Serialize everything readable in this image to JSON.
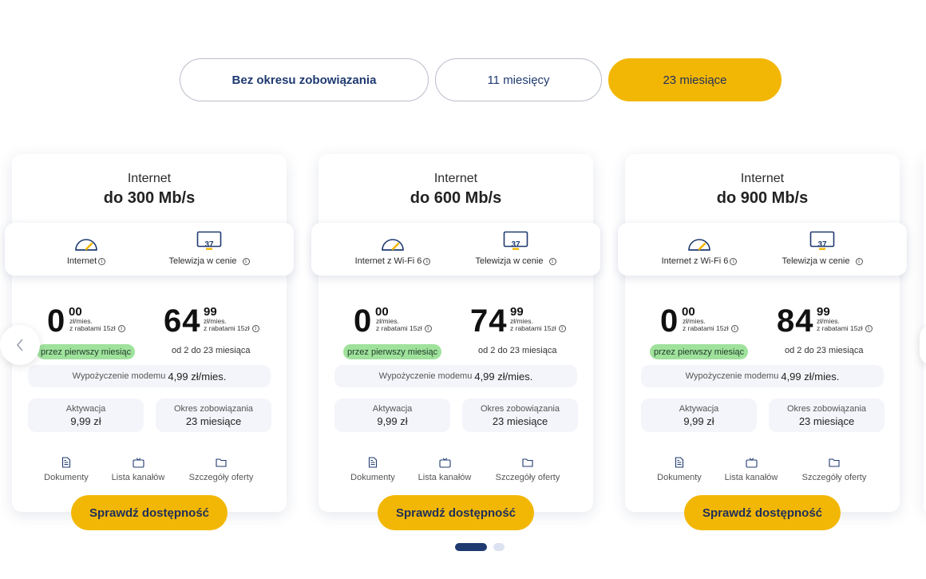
{
  "tabs": [
    {
      "label": "Bez okresu zobowiązania",
      "active": false
    },
    {
      "label": "11 miesięcy",
      "active": false
    },
    {
      "label": "23 miesiące",
      "active": true
    }
  ],
  "cards": [
    {
      "subtitle": "Internet",
      "title": "do 300 Mb/s",
      "features": [
        {
          "label": "Internet",
          "icon": "speedometer-icon"
        },
        {
          "label": "Telewizja w cenie",
          "icon": "tv-icon",
          "badge": "37"
        }
      ],
      "price1": {
        "int": "0",
        "dec": "00",
        "unit": "zł/mies.",
        "discount": "z rabatami 15zł",
        "note": "przez pierwszy miesiąc"
      },
      "price2": {
        "int": "64",
        "dec": "99",
        "unit": "zł/mies.",
        "discount": "z rabatami 15zł",
        "note": "od 2 do 23 miesiąca"
      },
      "modem_label": "Wypożyczenie modemu",
      "modem_value": "4,99 zł/mies.",
      "activation_label": "Aktywacja",
      "activation_value": "9,99 zł",
      "commitment_label": "Okres zobowiązania",
      "commitment_value": "23 miesiące",
      "links": [
        "Dokumenty",
        "Lista kanałów",
        "Szczegóły oferty"
      ],
      "cta": "Sprawdź dostępność"
    },
    {
      "subtitle": "Internet",
      "title": "do 600 Mb/s",
      "features": [
        {
          "label": "Internet z Wi-Fi 6",
          "icon": "speedometer-icon"
        },
        {
          "label": "Telewizja w cenie",
          "icon": "tv-icon",
          "badge": "37"
        }
      ],
      "price1": {
        "int": "0",
        "dec": "00",
        "unit": "zł/mies.",
        "discount": "z rabatami 15zł",
        "note": "przez pierwszy miesiąc"
      },
      "price2": {
        "int": "74",
        "dec": "99",
        "unit": "zł/mies.",
        "discount": "z rabatami 15zł",
        "note": "od 2 do 23 miesiąca"
      },
      "modem_label": "Wypożyczenie modemu",
      "modem_value": "4,99 zł/mies.",
      "activation_label": "Aktywacja",
      "activation_value": "9,99 zł",
      "commitment_label": "Okres zobowiązania",
      "commitment_value": "23 miesiące",
      "links": [
        "Dokumenty",
        "Lista kanałów",
        "Szczegóły oferty"
      ],
      "cta": "Sprawdź dostępność"
    },
    {
      "subtitle": "Internet",
      "title": "do 900 Mb/s",
      "features": [
        {
          "label": "Internet z Wi-Fi 6",
          "icon": "speedometer-icon"
        },
        {
          "label": "Telewizja w cenie",
          "icon": "tv-icon",
          "badge": "37"
        }
      ],
      "price1": {
        "int": "0",
        "dec": "00",
        "unit": "zł/mies.",
        "discount": "z rabatami 15zł",
        "note": "przez pierwszy miesiąc"
      },
      "price2": {
        "int": "84",
        "dec": "99",
        "unit": "zł/mies.",
        "discount": "z rabatami 15zł",
        "note": "od 2 do 23 miesiąca"
      },
      "modem_label": "Wypożyczenie modemu",
      "modem_value": "4,99 zł/mies.",
      "activation_label": "Aktywacja",
      "activation_value": "9,99 zł",
      "commitment_label": "Okres zobowiązania",
      "commitment_value": "23 miesiące",
      "links": [
        "Dokumenty",
        "Lista kanałów",
        "Szczegóły oferty"
      ],
      "cta": "Sprawdź dostępność"
    }
  ],
  "info_glyph": "i",
  "colors": {
    "accent": "#f2b705",
    "navy": "#1f3a70",
    "badge_green": "#9fe29c",
    "panel": "#f3f5fa"
  },
  "pagination": {
    "pages": 2,
    "active": 1
  }
}
